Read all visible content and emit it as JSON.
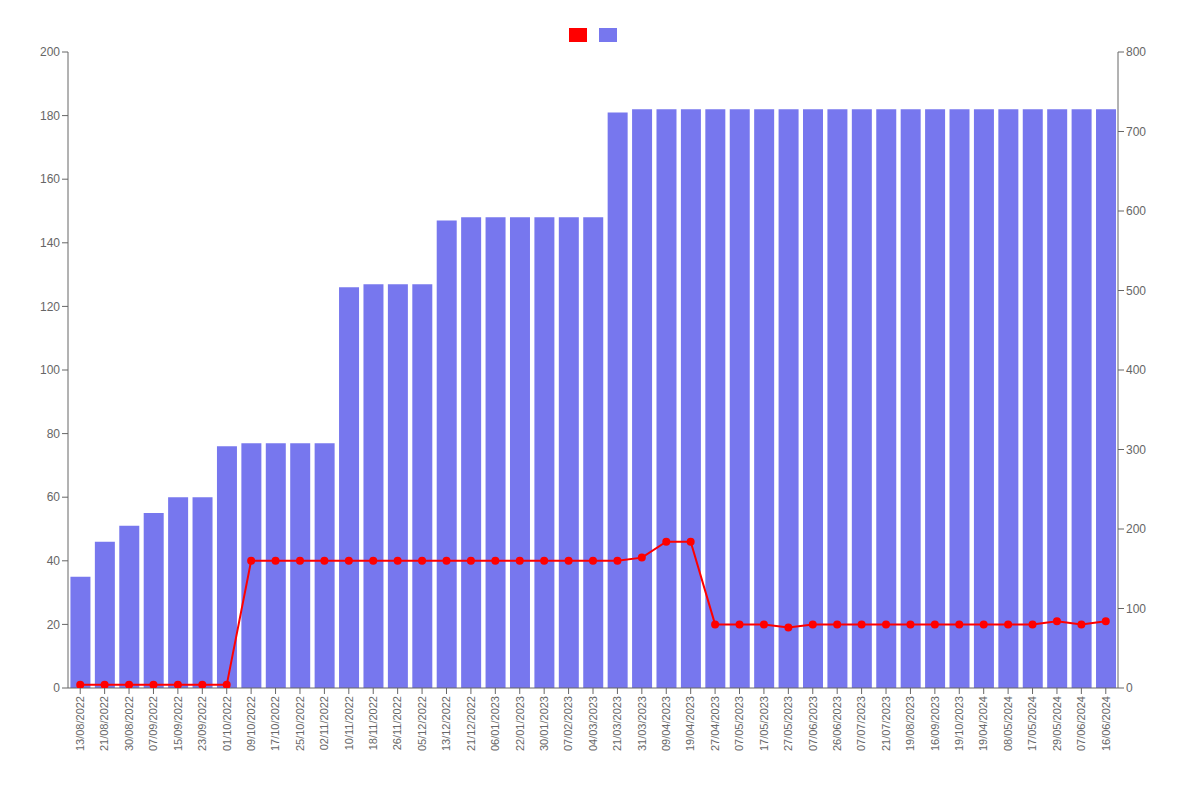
{
  "chart_data": {
    "type": "bar",
    "categories": [
      "13/08/2022",
      "21/08/2022",
      "30/08/2022",
      "07/09/2022",
      "15/09/2022",
      "23/09/2022",
      "01/10/2022",
      "09/10/2022",
      "17/10/2022",
      "25/10/2022",
      "02/11/2022",
      "10/11/2022",
      "18/11/2022",
      "26/11/2022",
      "05/12/2022",
      "13/12/2022",
      "21/12/2022",
      "06/01/2023",
      "22/01/2023",
      "30/01/2023",
      "07/02/2023",
      "04/03/2023",
      "21/03/2023",
      "31/03/2023",
      "09/04/2023",
      "19/04/2023",
      "27/04/2023",
      "07/05/2023",
      "17/05/2023",
      "27/05/2023",
      "07/06/2023",
      "26/06/2023",
      "07/07/2023",
      "21/07/2023",
      "19/08/2023",
      "16/09/2023",
      "19/10/2023",
      "19/04/2024",
      "08/05/2024",
      "17/05/2024",
      "29/05/2024",
      "07/06/2024",
      "16/06/2024"
    ],
    "series": [
      {
        "type": "line",
        "color": "#ff0000",
        "marker": "circle",
        "values": [
          1,
          1,
          1,
          1,
          1,
          1,
          1,
          40,
          40,
          40,
          40,
          40,
          40,
          40,
          40,
          40,
          40,
          40,
          40,
          40,
          40,
          40,
          40,
          41,
          46,
          46,
          20,
          20,
          20,
          19,
          20,
          20,
          20,
          20,
          20,
          20,
          20,
          20,
          20,
          20,
          21,
          20,
          21
        ]
      },
      {
        "type": "bar",
        "color": "#7777ee",
        "values": [
          35,
          46,
          51,
          55,
          60,
          60,
          76,
          77,
          77,
          77,
          77,
          126,
          127,
          127,
          127,
          147,
          148,
          148,
          148,
          148,
          148,
          148,
          181,
          182,
          182,
          182,
          182,
          182,
          182,
          182,
          182,
          182,
          182,
          182,
          182,
          182,
          182,
          182,
          182,
          182,
          182,
          182,
          182
        ]
      }
    ],
    "ylim": [
      0,
      200
    ],
    "yticks": [
      0,
      20,
      40,
      60,
      80,
      100,
      120,
      140,
      160,
      180,
      200
    ],
    "y2lim": [
      0,
      800
    ],
    "y2ticks": [
      0,
      100,
      200,
      300,
      400,
      500,
      600,
      700,
      800
    ],
    "grid": false,
    "legend": "top"
  }
}
